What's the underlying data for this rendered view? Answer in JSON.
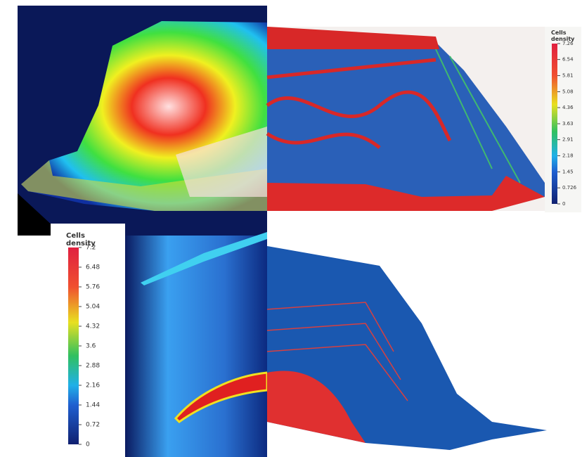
{
  "colorbars": [
    {
      "title": "Cells density",
      "ticks": [
        0,
        0.726,
        1.45,
        2.18,
        2.91,
        3.63,
        4.36,
        5.08,
        5.81,
        6.54,
        7.26
      ]
    },
    {
      "title": "Cells density",
      "ticks": [
        0,
        0.72,
        1.44,
        2.16,
        2.88,
        3.6,
        4.32,
        5.04,
        5.76,
        6.48,
        7.2
      ]
    }
  ]
}
